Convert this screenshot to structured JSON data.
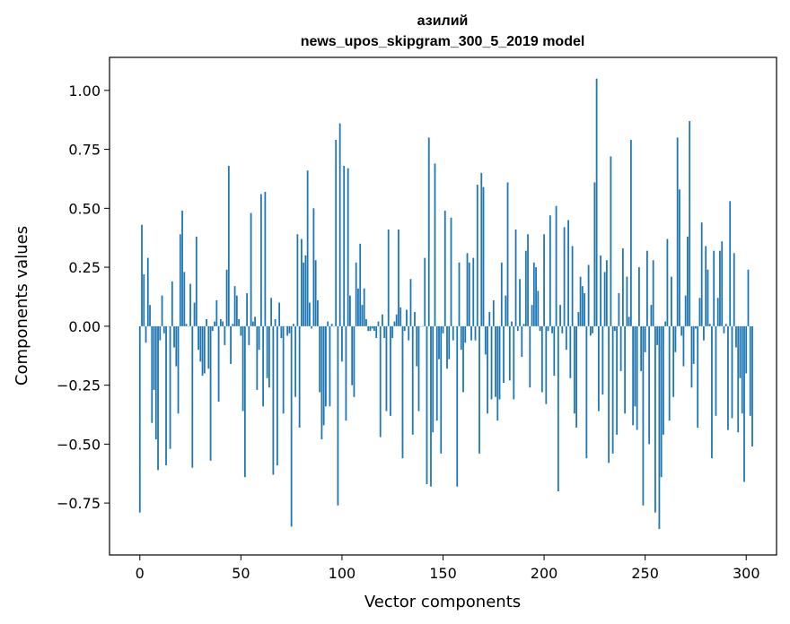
{
  "chart_data": {
    "type": "bar",
    "title": "азилий",
    "subtitle": "news_upos_skipgram_300_5_2019 model",
    "xlabel": "Vector components",
    "ylabel": "Components values",
    "xlim": [
      -15,
      315
    ],
    "ylim": [
      -0.97,
      1.14
    ],
    "xticks": [
      0,
      50,
      100,
      150,
      200,
      250,
      300
    ],
    "yticks": [
      -0.75,
      -0.5,
      -0.25,
      0.0,
      0.25,
      0.5,
      0.75,
      1.0
    ],
    "xtick_labels": [
      "0",
      "50",
      "100",
      "150",
      "200",
      "250",
      "300"
    ],
    "ytick_labels": [
      "−0.75",
      "−0.50",
      "−0.25",
      "0.00",
      "0.25",
      "0.50",
      "0.75",
      "1.00"
    ],
    "color": "#1f77b4",
    "grid": false,
    "x_start": 0,
    "values": [
      -0.79,
      0.43,
      0.22,
      -0.07,
      0.29,
      0.09,
      -0.41,
      -0.27,
      -0.48,
      -0.61,
      -0.06,
      0.13,
      -0.03,
      -0.59,
      0.0,
      -0.52,
      0.19,
      -0.09,
      -0.17,
      -0.37,
      0.39,
      0.49,
      0.23,
      0.01,
      0.0,
      0.18,
      -0.6,
      0.1,
      0.38,
      -0.1,
      -0.15,
      -0.21,
      -0.2,
      0.03,
      -0.18,
      -0.57,
      -0.02,
      0.02,
      0.11,
      -0.32,
      0.03,
      0.02,
      -0.08,
      0.24,
      0.68,
      -0.16,
      0.01,
      0.17,
      0.13,
      0.03,
      -0.04,
      -0.36,
      -0.64,
      0.14,
      -0.08,
      0.48,
      0.02,
      0.04,
      -0.27,
      -0.1,
      0.56,
      -0.34,
      0.57,
      -0.22,
      -0.26,
      0.12,
      -0.63,
      0.03,
      -0.59,
      0.1,
      -0.05,
      -0.37,
      0.0,
      -0.04,
      -0.03,
      -0.85,
      0.01,
      -0.3,
      0.39,
      -0.43,
      0.37,
      0.27,
      0.3,
      0.66,
      0.1,
      -0.01,
      0.5,
      0.28,
      0.11,
      -0.28,
      -0.48,
      -0.42,
      -0.34,
      0.02,
      -0.34,
      0.01,
      0.0,
      0.79,
      -0.76,
      0.86,
      -0.15,
      0.68,
      -0.4,
      0.67,
      0.13,
      -0.25,
      -0.3,
      0.27,
      0.16,
      0.35,
      0.09,
      0.16,
      0.03,
      -0.02,
      -0.02,
      -0.01,
      -0.02,
      -0.05,
      0.02,
      -0.47,
      0.05,
      -0.05,
      -0.36,
      0.41,
      -0.38,
      -0.05,
      0.02,
      0.05,
      0.41,
      0.08,
      -0.56,
      -0.02,
      0.07,
      -0.06,
      0.2,
      -0.46,
      0.06,
      -0.17,
      -0.36,
      0.0,
      0.0,
      0.29,
      -0.67,
      0.8,
      -0.68,
      -0.45,
      0.69,
      -0.4,
      -0.14,
      -0.54,
      -0.03,
      0.49,
      -0.18,
      -0.14,
      0.46,
      -0.06,
      0.0,
      -0.68,
      0.27,
      -0.1,
      -0.28,
      -0.07,
      0.31,
      0.27,
      -0.06,
      0.29,
      -0.06,
      0.6,
      -0.54,
      0.65,
      0.59,
      -0.12,
      -0.37,
      0.06,
      -0.31,
      0.11,
      -0.3,
      -0.4,
      -0.31,
      0.27,
      -0.24,
      0.13,
      0.61,
      -0.23,
      0.02,
      -0.31,
      0.41,
      -0.02,
      0.2,
      -0.13,
      0.01,
      0.32,
      0.39,
      -0.26,
      0.09,
      0.27,
      0.25,
      0.15,
      -0.02,
      -0.28,
      0.39,
      -0.33,
      -0.02,
      0.47,
      -0.03,
      -0.21,
      0.51,
      -0.7,
      0.09,
      -0.03,
      0.42,
      -0.1,
      0.45,
      -0.22,
      0.34,
      -0.37,
      -0.43,
      0.06,
      0.21,
      0.17,
      0.14,
      -0.56,
      0.26,
      -0.04,
      -0.03,
      0.61,
      1.05,
      -0.36,
      0.3,
      -0.29,
      0.23,
      0.28,
      -0.58,
      0.72,
      -0.54,
      -0.02,
      -0.46,
      0.14,
      -0.19,
      0.33,
      -0.37,
      0.21,
      0.04,
      0.79,
      -0.42,
      -0.34,
      -0.44,
      0.25,
      -0.19,
      -0.76,
      -0.11,
      0.32,
      -0.5,
      0.09,
      0.28,
      -0.79,
      -0.08,
      -0.86,
      -0.64,
      -0.46,
      0.02,
      0.37,
      -0.4,
      0.21,
      -0.3,
      -0.11,
      0.8,
      0.58,
      -0.04,
      -0.17,
      0.13,
      0.38,
      0.87,
      -0.26,
      -0.16,
      -0.01,
      -0.43,
      0.12,
      0.44,
      -0.06,
      0.34,
      0.24,
      0.01,
      -0.56,
      0.32,
      -0.38,
      0.12,
      0.32,
      0.36,
      -0.03,
      0.01,
      -0.44,
      0.53,
      -0.39,
      0.31,
      -0.09,
      -0.45,
      -0.22,
      -0.37,
      -0.66,
      -0.2,
      0.24,
      -0.38,
      -0.51
    ]
  }
}
